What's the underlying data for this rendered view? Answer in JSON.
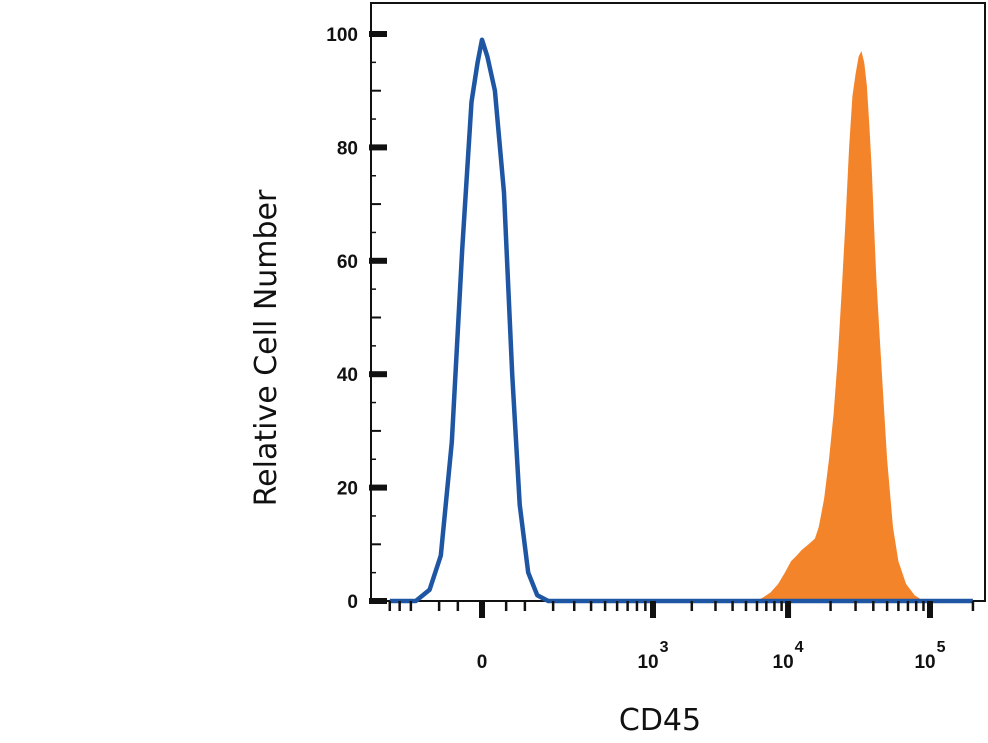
{
  "chart_data": {
    "type": "area",
    "xlabel": "CD45",
    "ylabel": "Relative Cell Number",
    "x_scale": "biexponential",
    "ylim": [
      0,
      100
    ],
    "y_ticks": [
      "0",
      "20",
      "40",
      "60",
      "80",
      "100"
    ],
    "x_ticks": [
      {
        "base": "0",
        "exp": "",
        "value": 0
      },
      {
        "base": "10",
        "exp": "3",
        "value": 1000
      },
      {
        "base": "10",
        "exp": "4",
        "value": 10000
      },
      {
        "base": "10",
        "exp": "5",
        "value": 100000
      }
    ],
    "grid": false,
    "legend": "none",
    "series": [
      {
        "style": "outline",
        "color": "#1f56a3",
        "points": [
          [
            -300,
            0
          ],
          [
            -180,
            0
          ],
          [
            -130,
            2
          ],
          [
            -95,
            8
          ],
          [
            -65,
            28
          ],
          [
            -40,
            62
          ],
          [
            -20,
            88
          ],
          [
            -8,
            95
          ],
          [
            0,
            99
          ],
          [
            10,
            96
          ],
          [
            25,
            90
          ],
          [
            45,
            72
          ],
          [
            65,
            40
          ],
          [
            85,
            17
          ],
          [
            110,
            5
          ],
          [
            140,
            1
          ],
          [
            180,
            0
          ],
          [
            250,
            0
          ],
          [
            1000,
            0
          ],
          [
            10000,
            0
          ],
          [
            100000,
            0
          ],
          [
            200000,
            0
          ]
        ]
      },
      {
        "style": "filled",
        "color": "#f4842a",
        "points": [
          [
            -300,
            0
          ],
          [
            5500,
            0
          ],
          [
            6500,
            0.5
          ],
          [
            7500,
            1.5
          ],
          [
            8500,
            3
          ],
          [
            9500,
            5
          ],
          [
            10500,
            7
          ],
          [
            11500,
            8
          ],
          [
            12500,
            9
          ],
          [
            14000,
            10
          ],
          [
            15500,
            11
          ],
          [
            16500,
            13
          ],
          [
            18000,
            18
          ],
          [
            19500,
            25
          ],
          [
            21000,
            33
          ],
          [
            22500,
            43
          ],
          [
            24000,
            55
          ],
          [
            25500,
            67
          ],
          [
            27000,
            80
          ],
          [
            28500,
            89
          ],
          [
            30000,
            93
          ],
          [
            31500,
            96
          ],
          [
            33000,
            97
          ],
          [
            34500,
            95
          ],
          [
            36000,
            91
          ],
          [
            37500,
            84
          ],
          [
            39000,
            76
          ],
          [
            40500,
            66
          ],
          [
            42000,
            57
          ],
          [
            44000,
            48
          ],
          [
            46500,
            38
          ],
          [
            50000,
            25
          ],
          [
            55000,
            13
          ],
          [
            60000,
            7
          ],
          [
            68000,
            3
          ],
          [
            78000,
            1
          ],
          [
            90000,
            0
          ],
          [
            200000,
            0
          ]
        ]
      }
    ]
  }
}
